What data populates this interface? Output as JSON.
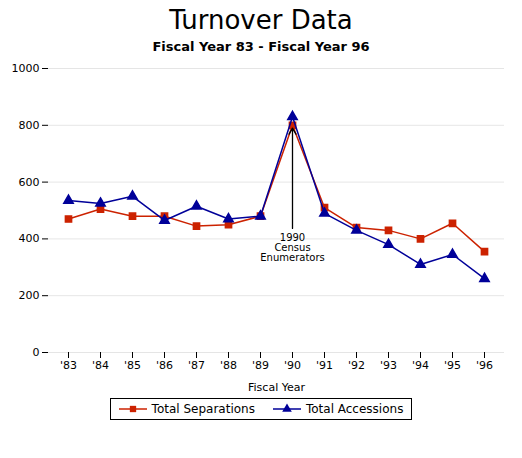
{
  "chart_data": {
    "type": "line",
    "title": "Turnover Data",
    "subtitle": "Fiscal Year 83 - Fiscal Year 96",
    "xlabel": "Fiscal Year",
    "categories": [
      "'83",
      "'84",
      "'85",
      "'86",
      "'87",
      "'88",
      "'89",
      "'90",
      "'91",
      "'92",
      "'93",
      "'94",
      "'95",
      "'96"
    ],
    "series": [
      {
        "name": "Total Separations",
        "color": "#cc2200",
        "marker": "square",
        "values": [
          470,
          505,
          480,
          480,
          445,
          450,
          480,
          800,
          510,
          440,
          430,
          400,
          455,
          355
        ]
      },
      {
        "name": "Total Accessions",
        "color": "#000099",
        "marker": "triangle",
        "values": [
          535,
          525,
          550,
          465,
          515,
          470,
          480,
          830,
          490,
          430,
          380,
          310,
          345,
          260
        ]
      }
    ],
    "ylim": [
      0,
      1000
    ],
    "yticks": [
      0,
      200,
      400,
      600,
      800,
      1000
    ],
    "grid": true,
    "legend": "bottom",
    "annotations": [
      {
        "text": "1990\nCensus\nEnumerators",
        "x": "'90",
        "y": 790,
        "text_y": 430
      }
    ]
  }
}
